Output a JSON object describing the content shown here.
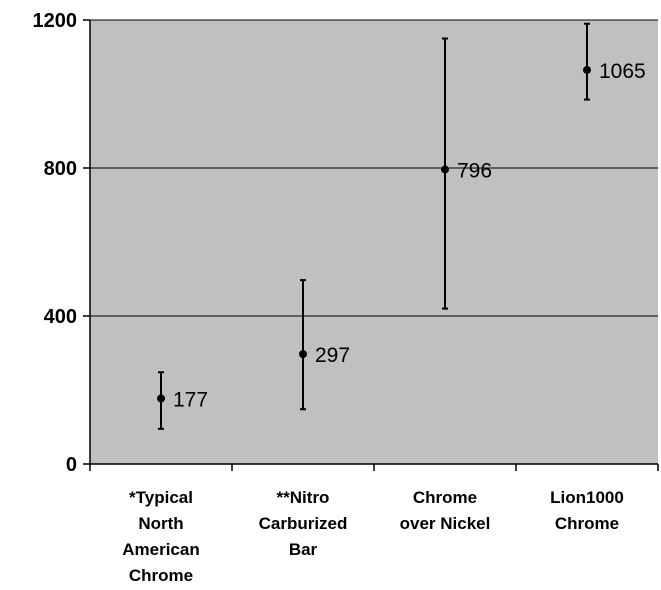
{
  "chart_data": {
    "type": "scatter",
    "title": "",
    "xlabel": "",
    "ylabel": "",
    "ylim": [
      0,
      1200
    ],
    "yticks": [
      0,
      400,
      800,
      1200
    ],
    "grid": true,
    "legend": "none",
    "colors": {
      "plot_background": "#c0c0c0",
      "marks": "#000000"
    },
    "categories": [
      [
        "*Typical",
        "North",
        "American",
        "Chrome"
      ],
      [
        "**Nitro",
        "Carburized",
        "Bar"
      ],
      [
        "Chrome",
        "over Nickel"
      ],
      [
        "Lion1000",
        "Chrome"
      ]
    ],
    "series": [
      {
        "values": [
          177,
          297,
          796,
          1065
        ],
        "error_low": [
          95,
          148,
          420,
          985
        ],
        "error_high": [
          248,
          497,
          1150,
          1190
        ],
        "data_labels": [
          "177",
          "297",
          "796",
          "1065"
        ]
      }
    ]
  }
}
